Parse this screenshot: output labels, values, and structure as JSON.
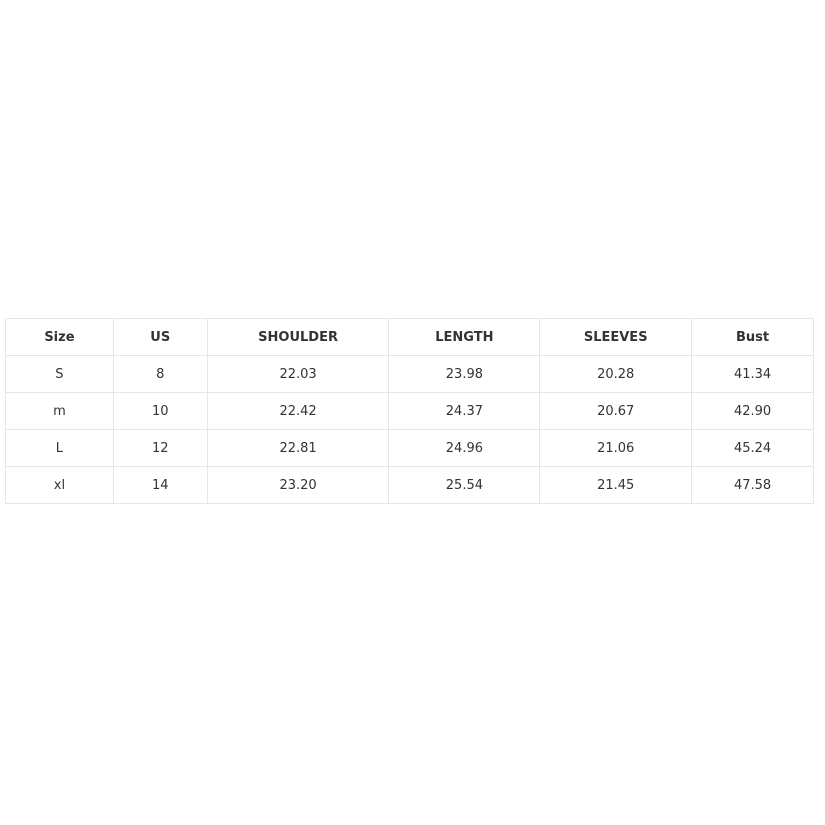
{
  "size_table": {
    "headers": [
      "Size",
      "US",
      "SHOULDER",
      "LENGTH",
      "SLEEVES",
      "Bust"
    ],
    "rows": [
      [
        "S",
        "8",
        "22.03",
        "23.98",
        "20.28",
        "41.34"
      ],
      [
        "m",
        "10",
        "22.42",
        "24.37",
        "20.67",
        "42.90"
      ],
      [
        "L",
        "12",
        "22.81",
        "24.96",
        "21.06",
        "45.24"
      ],
      [
        "xl",
        "14",
        "23.20",
        "25.54",
        "21.45",
        "47.58"
      ]
    ]
  }
}
